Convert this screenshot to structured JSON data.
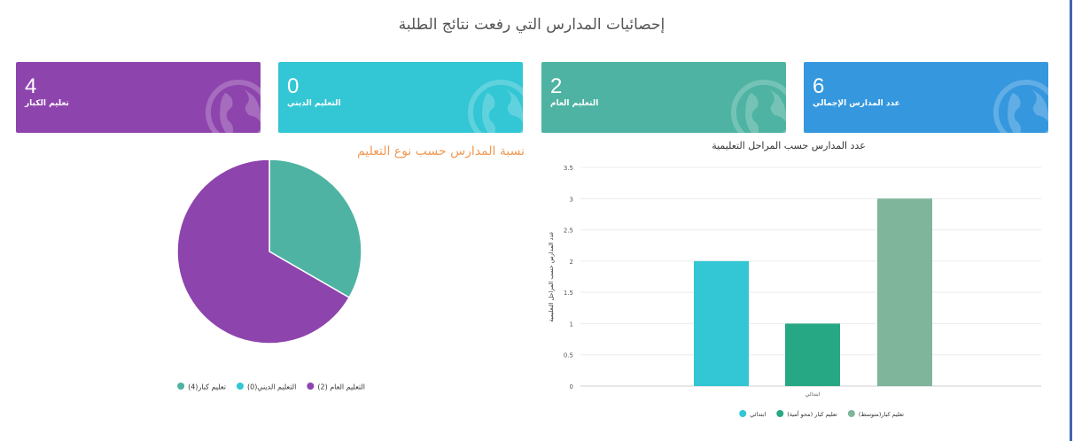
{
  "page": {
    "title": "إحصائيات المدارس التي رفعت نتائج الطلبة"
  },
  "cards": [
    {
      "value": "4",
      "label": "تعليم الكبار",
      "color": "#8e44ad"
    },
    {
      "value": "0",
      "label": "التعليم الديني",
      "color": "#33c6d4"
    },
    {
      "value": "2",
      "label": "التعليم العام",
      "color": "#4eb3a2"
    },
    {
      "value": "6",
      "label": "عدد المدارس الإجمالي",
      "color": "#3597de"
    }
  ],
  "pie_title": "نسبة المدارس حسب نوع التعليم",
  "bar_title": "عدد المدارس حسب المراحل التعليمية",
  "chart_data": [
    {
      "type": "pie",
      "title": "نسبة المدارس حسب نوع التعليم",
      "labels": [
        "التعليم العام (2)",
        "التعليم الديني(0)",
        "تعليم كبار(4)"
      ],
      "values": [
        2,
        0,
        4
      ],
      "colors": [
        "#4eb3a2",
        "#33c6d4",
        "#8e44ad"
      ],
      "legend": "bottom"
    },
    {
      "type": "bar",
      "title": "عدد المدارس حسب المراحل التعليمية",
      "categories": [
        "ابتدائي"
      ],
      "ylabel": "عدد المدارس حسب المراحل التعليمية",
      "ylim": [
        0,
        3.5
      ],
      "yticks": [
        "0",
        "0.5",
        "1",
        "1.5",
        "2",
        "2.5",
        "3",
        "3.5"
      ],
      "series": [
        {
          "name": "ابتدائي",
          "values": [
            2
          ],
          "color": "#33c6d4"
        },
        {
          "name": "تعليم كبار (محو أمية)",
          "values": [
            1
          ],
          "color": "#27a884"
        },
        {
          "name": "تعليم كبار(متوسط)",
          "values": [
            3
          ],
          "color": "#7fb59a"
        }
      ],
      "legend": "bottom",
      "grid": true
    }
  ]
}
